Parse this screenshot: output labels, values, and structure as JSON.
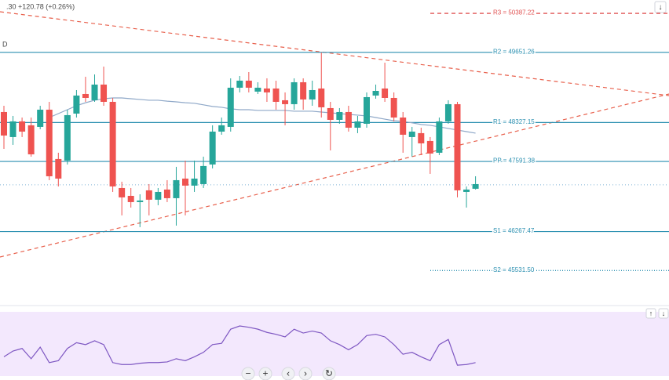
{
  "header": {
    "price_change": ".30 +120.78 (+0.26%)",
    "interval": "D"
  },
  "chart_data": {
    "type": "candlestick",
    "ylim": [
      44900,
      50640
    ],
    "up_color": "#26a69a",
    "down_color": "#ef5350",
    "open": [
      48525,
      48052,
      48348,
      48274,
      48244,
      48569,
      47638,
      47608,
      48495,
      48865,
      48747,
      49043,
      48717,
      47090,
      46942,
      46824,
      47046,
      46869,
      47061,
      46898,
      47268,
      47135,
      47164,
      47534,
      48155,
      48244,
      48984,
      49117,
      48910,
      48969,
      48969,
      48747,
      48673,
      49087,
      48762,
      48969,
      48599,
      48377,
      48525,
      48229,
      48303,
      48836,
      48969,
      48791,
      48421,
      48052,
      48126,
      47978,
      47756,
      48348,
      48673,
      47016,
      47076
    ],
    "high": [
      48643,
      48451,
      48421,
      48421,
      48643,
      48717,
      47756,
      48569,
      48939,
      49191,
      49235,
      49383,
      48791,
      47209,
      47090,
      46972,
      47164,
      47090,
      47238,
      47490,
      47608,
      47608,
      47682,
      48274,
      48421,
      49161,
      49205,
      49279,
      49087,
      49161,
      49117,
      48895,
      49161,
      49161,
      49117,
      49649,
      48717,
      48599,
      48643,
      48451,
      48895,
      49043,
      49457,
      48895,
      48525,
      48244,
      48229,
      48052,
      48421,
      48747,
      48717,
      47120,
      47312
    ],
    "low": [
      47830,
      47904,
      48052,
      47682,
      48200,
      47238,
      47120,
      47534,
      48421,
      48717,
      48717,
      48643,
      47016,
      46573,
      46721,
      46351,
      46573,
      46765,
      46824,
      46380,
      46573,
      47016,
      47090,
      47460,
      48096,
      48155,
      48895,
      48895,
      48865,
      48717,
      48569,
      48274,
      48569,
      48569,
      48643,
      48421,
      47800,
      48303,
      48155,
      48126,
      48229,
      48776,
      48717,
      48348,
      47756,
      47682,
      47712,
      47357,
      47712,
      48303,
      46913,
      46721,
      47061
    ],
    "close": [
      48081,
      48348,
      48155,
      47726,
      48569,
      47312,
      47268,
      48466,
      48836,
      48791,
      49043,
      48717,
      47120,
      46913,
      46824,
      46854,
      46869,
      47016,
      46898,
      47238,
      47135,
      47268,
      47505,
      48155,
      48274,
      48984,
      49117,
      48984,
      48984,
      48895,
      48717,
      48673,
      49087,
      48762,
      48939,
      48614,
      48377,
      48525,
      48229,
      48348,
      48806,
      48924,
      48791,
      48421,
      48096,
      48155,
      47933,
      47741,
      48348,
      48673,
      47046,
      47061,
      47164
    ],
    "ma": {
      "color": "#8fa8c8",
      "values": [
        null,
        null,
        null,
        null,
        null,
        48421,
        48495,
        48569,
        48643,
        48700,
        48747,
        48776,
        48791,
        48791,
        48776,
        48762,
        48747,
        48747,
        48730,
        48717,
        48700,
        48690,
        48660,
        48630,
        48614,
        48585,
        48569,
        48569,
        48555,
        48555,
        48555,
        48555,
        48540,
        48540,
        48540,
        48525,
        48510,
        48495,
        48480,
        48466,
        48451,
        48421,
        48390,
        48360,
        48348,
        48320,
        48290,
        48274,
        48244,
        48215,
        48185,
        48155,
        48126
      ]
    },
    "last_price": {
      "value": 47150,
      "color": "#7fb3d5"
    },
    "levels": [
      {
        "label": "R3 = 50387.22",
        "value": 50387.22,
        "color": "#e05252",
        "style": "dashed"
      },
      {
        "label": "R2 = 49651.26",
        "value": 49651.26,
        "color": "#2a8fb0",
        "style": "solid"
      },
      {
        "label": "R1 = 48327.15",
        "value": 48327.15,
        "color": "#2a8fb0",
        "style": "solid"
      },
      {
        "label": "PP = 47591.38",
        "value": 47591.38,
        "color": "#2a8fb0",
        "style": "solid"
      },
      {
        "label": "S1 = 46267.47",
        "value": 46267.47,
        "color": "#2a8fb0",
        "style": "solid"
      },
      {
        "label": "S2 = 45531.50",
        "value": 45531.5,
        "color": "#2a8fb0",
        "style": "dotted"
      }
    ],
    "rsi": {
      "type": "line",
      "ylim": [
        0,
        100
      ],
      "color": "#7e57c2",
      "background": "#f3e8fd",
      "values": [
        30,
        39,
        43,
        27,
        45,
        21,
        24,
        43,
        52,
        49,
        55,
        49,
        21,
        18,
        18,
        20,
        21,
        21,
        22,
        27,
        24,
        30,
        37,
        49,
        51,
        73,
        78,
        76,
        73,
        68,
        65,
        61,
        73,
        67,
        70,
        67,
        55,
        49,
        41,
        49,
        63,
        65,
        61,
        49,
        34,
        37,
        30,
        24,
        49,
        57,
        17,
        18,
        21
      ]
    }
  },
  "controls": {
    "zoom_out": "−",
    "zoom_in": "+",
    "back": "‹",
    "forward": "›",
    "reset": "↻",
    "scroll": "↓",
    "panel_up": "↑",
    "panel_down": "↓"
  }
}
